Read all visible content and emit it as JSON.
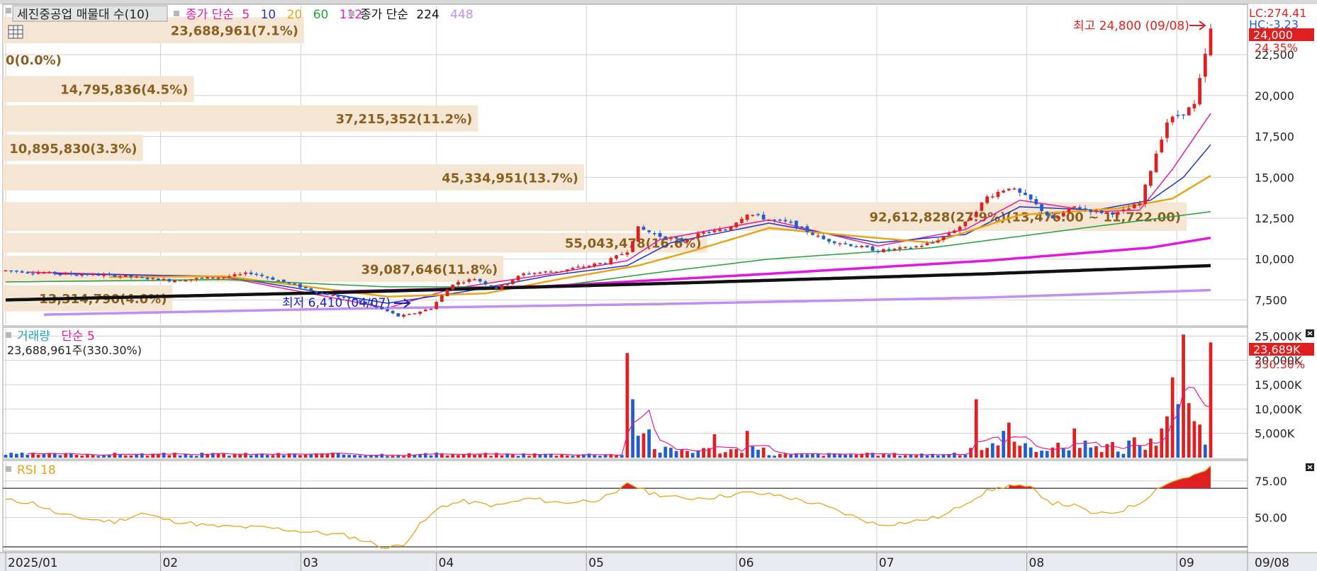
{
  "header": {
    "title": "세진중공업 매물대 수(10)",
    "ma_label": "종가 단순",
    "ma_periods": [
      "5",
      "10",
      "20",
      "60",
      "112"
    ],
    "ma_colors": [
      "#e8189a",
      "#2233cc",
      "#e8a317",
      "#22a038",
      "#e018e0"
    ],
    "ma2_label": "종가 단순",
    "ma2_periods": [
      "224",
      "448"
    ],
    "ma2_colors": [
      "#111111",
      "#c090f0"
    ]
  },
  "price_axis": {
    "ticks": [
      "22,500",
      "20,000",
      "17,500",
      "15,000",
      "12,500",
      "10,000",
      "7,500"
    ],
    "tick_values": [
      22500,
      20000,
      17500,
      15000,
      12500,
      10000,
      7500
    ],
    "lc": "LC:274.41",
    "hc": "HC:-3.23",
    "current": "24,000",
    "change": "24.35%"
  },
  "annotations": {
    "high": "최고 24,800 (09/08)",
    "low": "최저 6,410 (04/07)"
  },
  "volume_profile": [
    {
      "label": "23,688,961(7.1%)",
      "price_low": 23200,
      "price_high": 24800,
      "fraction": 0.071
    },
    {
      "label": "0(0.0%)",
      "price_low": 21400,
      "price_high": 23000,
      "fraction": 0.0
    },
    {
      "label": "14,795,836(4.5%)",
      "price_low": 19600,
      "price_high": 21200,
      "fraction": 0.045
    },
    {
      "label": "37,215,352(11.2%)",
      "price_low": 17800,
      "price_high": 19400,
      "fraction": 0.112
    },
    {
      "label": "10,895,830(3.3%)",
      "price_low": 16000,
      "price_high": 17600,
      "fraction": 0.033
    },
    {
      "label": "45,334,951(13.7%)",
      "price_low": 14200,
      "price_high": 15800,
      "fraction": 0.137
    },
    {
      "label": "92,612,828(27.9%)(13,476.00 ~ 11,722.00)",
      "price_low": 11722,
      "price_high": 13476,
      "fraction": 0.279
    },
    {
      "label": "55,043,478(16.6%)",
      "price_low": 10400,
      "price_high": 11600,
      "fraction": 0.166
    },
    {
      "label": "39,087,646(11.8%)",
      "price_low": 8600,
      "price_high": 10200,
      "fraction": 0.118
    },
    {
      "label": "13,314,790(4.0%)",
      "price_low": 6800,
      "price_high": 8400,
      "fraction": 0.04
    }
  ],
  "volume_panel": {
    "title": "거래량",
    "ma_label": "단순 5",
    "info": "23,688,961주(330.30%)",
    "ticks": [
      "25,000K",
      "20,000K",
      "15,000K",
      "10,000K",
      "5,000K"
    ],
    "tick_values": [
      25000,
      20000,
      15000,
      10000,
      5000
    ],
    "current": "23,689K",
    "change": "330.30%"
  },
  "rsi_panel": {
    "title": "RSI 18",
    "ticks": [
      "75.00",
      "50.00"
    ],
    "tick_values": [
      75,
      50
    ],
    "overbought": 70,
    "underline": 30
  },
  "x_axis": {
    "labels": [
      "2025/01",
      "02",
      "03",
      "04",
      "05",
      "06",
      "07",
      "08",
      "09"
    ],
    "label_dates": [
      "2025-01-02",
      "2025-02-03",
      "2025-03-04",
      "2025-04-01",
      "2025-05-02",
      "2025-06-02",
      "2025-07-01",
      "2025-08-01",
      "2025-09-01"
    ],
    "right_label": "09/08"
  },
  "chart_data": {
    "type": "candlestick",
    "start_date": "2025-01-02",
    "end_date": "2025-09-08",
    "price_ylim": [
      6000,
      25500
    ],
    "price_path": [
      [
        0,
        9300
      ],
      [
        10,
        9100
      ],
      [
        20,
        9000
      ],
      [
        30,
        8700
      ],
      [
        40,
        8900
      ],
      [
        45,
        9150
      ],
      [
        50,
        8700
      ],
      [
        58,
        7900
      ],
      [
        64,
        7500
      ],
      [
        70,
        6800
      ],
      [
        72,
        6500
      ],
      [
        74,
        6600
      ],
      [
        78,
        7000
      ],
      [
        82,
        8500
      ],
      [
        86,
        8800
      ],
      [
        90,
        8200
      ],
      [
        95,
        9100
      ],
      [
        102,
        9300
      ],
      [
        110,
        9800
      ],
      [
        114,
        10500
      ],
      [
        116,
        11900
      ],
      [
        120,
        11400
      ],
      [
        124,
        11100
      ],
      [
        128,
        11600
      ],
      [
        132,
        11800
      ],
      [
        136,
        12800
      ],
      [
        140,
        12400
      ],
      [
        144,
        12200
      ],
      [
        150,
        11200
      ],
      [
        156,
        10800
      ],
      [
        160,
        10500
      ],
      [
        166,
        10700
      ],
      [
        170,
        11000
      ],
      [
        176,
        12200
      ],
      [
        180,
        13800
      ],
      [
        184,
        14400
      ],
      [
        188,
        13600
      ],
      [
        192,
        12400
      ],
      [
        196,
        13200
      ],
      [
        200,
        12900
      ],
      [
        204,
        12800
      ],
      [
        208,
        13400
      ],
      [
        211,
        16500
      ],
      [
        213,
        18400
      ],
      [
        216,
        19000
      ],
      [
        218,
        19400
      ],
      [
        221,
        24000
      ]
    ],
    "ma_lines": [
      {
        "period": "5",
        "color": "#e8189a",
        "path": [
          [
            4,
            9200
          ],
          [
            40,
            8900
          ],
          [
            70,
            7000
          ],
          [
            82,
            8200
          ],
          [
            100,
            9100
          ],
          [
            114,
            9900
          ],
          [
            120,
            11200
          ],
          [
            140,
            12400
          ],
          [
            160,
            10800
          ],
          [
            176,
            11800
          ],
          [
            186,
            13600
          ],
          [
            200,
            12900
          ],
          [
            208,
            13000
          ],
          [
            214,
            15500
          ],
          [
            221,
            18900
          ]
        ]
      },
      {
        "period": "10",
        "color": "#2233cc",
        "path": [
          [
            9,
            9100
          ],
          [
            40,
            8950
          ],
          [
            70,
            7300
          ],
          [
            84,
            8000
          ],
          [
            100,
            9000
          ],
          [
            114,
            9600
          ],
          [
            122,
            11000
          ],
          [
            140,
            12200
          ],
          [
            160,
            11000
          ],
          [
            176,
            11500
          ],
          [
            186,
            13200
          ],
          [
            200,
            13000
          ],
          [
            210,
            13600
          ],
          [
            216,
            15000
          ],
          [
            221,
            17000
          ]
        ]
      },
      {
        "period": "20",
        "color": "#e8a317",
        "path": [
          [
            19,
            8900
          ],
          [
            40,
            8950
          ],
          [
            70,
            7700
          ],
          [
            88,
            7900
          ],
          [
            102,
            8800
          ],
          [
            116,
            9600
          ],
          [
            126,
            10500
          ],
          [
            140,
            11900
          ],
          [
            156,
            11400
          ],
          [
            170,
            11000
          ],
          [
            186,
            12700
          ],
          [
            204,
            13100
          ],
          [
            214,
            13700
          ],
          [
            221,
            15100
          ]
        ]
      },
      {
        "period": "60",
        "color": "#22a038",
        "path": [
          [
            0,
            8600
          ],
          [
            40,
            8750
          ],
          [
            70,
            8300
          ],
          [
            100,
            8300
          ],
          [
            120,
            9200
          ],
          [
            140,
            10000
          ],
          [
            170,
            10700
          ],
          [
            200,
            12000
          ],
          [
            221,
            12900
          ]
        ]
      },
      {
        "period": "112",
        "color": "#e018e0",
        "path": [
          [
            60,
            8000
          ],
          [
            100,
            8350
          ],
          [
            140,
            9100
          ],
          [
            180,
            9900
          ],
          [
            210,
            10700
          ],
          [
            221,
            11300
          ]
        ]
      },
      {
        "period": "224",
        "color": "#111111",
        "path": [
          [
            0,
            7500
          ],
          [
            60,
            7950
          ],
          [
            120,
            8500
          ],
          [
            180,
            9100
          ],
          [
            221,
            9600
          ]
        ]
      },
      {
        "period": "448",
        "color": "#c090f0",
        "path": [
          [
            7,
            6600
          ],
          [
            60,
            6950
          ],
          [
            120,
            7250
          ],
          [
            180,
            7650
          ],
          [
            221,
            8100
          ]
        ]
      }
    ],
    "volume_ylim": [
      0,
      26500
    ],
    "volume_spikes": [
      [
        114,
        21500,
        "up"
      ],
      [
        115,
        12000,
        "down"
      ],
      [
        116,
        4500,
        "down"
      ],
      [
        117,
        5000,
        "up"
      ],
      [
        118,
        5800,
        "down"
      ],
      [
        130,
        4800,
        "up"
      ],
      [
        136,
        5500,
        "up"
      ],
      [
        178,
        12000,
        "up"
      ],
      [
        183,
        5500,
        "down"
      ],
      [
        184,
        7200,
        "up"
      ],
      [
        196,
        6000,
        "up"
      ],
      [
        198,
        3500,
        "down"
      ],
      [
        212,
        6000,
        "up"
      ],
      [
        213,
        8500,
        "up"
      ],
      [
        214,
        16500,
        "up"
      ],
      [
        215,
        11000,
        "down"
      ],
      [
        216,
        25300,
        "up"
      ],
      [
        217,
        11200,
        "up"
      ],
      [
        218,
        7500,
        "up"
      ],
      [
        219,
        6800,
        "up"
      ],
      [
        221,
        23689,
        "up"
      ]
    ],
    "rsi_ylim": [
      28,
      88
    ],
    "rsi_path": [
      [
        0,
        62
      ],
      [
        5,
        60
      ],
      [
        10,
        52
      ],
      [
        15,
        49
      ],
      [
        20,
        47
      ],
      [
        25,
        53
      ],
      [
        30,
        48
      ],
      [
        38,
        44
      ],
      [
        48,
        43
      ],
      [
        56,
        40
      ],
      [
        62,
        38
      ],
      [
        66,
        34
      ],
      [
        70,
        29
      ],
      [
        73,
        32
      ],
      [
        76,
        45
      ],
      [
        80,
        58
      ],
      [
        84,
        61
      ],
      [
        90,
        58
      ],
      [
        96,
        63
      ],
      [
        102,
        60
      ],
      [
        108,
        62
      ],
      [
        112,
        66
      ],
      [
        114,
        74
      ],
      [
        118,
        67
      ],
      [
        124,
        63
      ],
      [
        130,
        64
      ],
      [
        136,
        67
      ],
      [
        142,
        65
      ],
      [
        150,
        58
      ],
      [
        156,
        50
      ],
      [
        160,
        45
      ],
      [
        166,
        47
      ],
      [
        172,
        51
      ],
      [
        176,
        60
      ],
      [
        180,
        68
      ],
      [
        184,
        72
      ],
      [
        188,
        70
      ],
      [
        192,
        60
      ],
      [
        196,
        58
      ],
      [
        200,
        52
      ],
      [
        204,
        54
      ],
      [
        208,
        60
      ],
      [
        212,
        72
      ],
      [
        216,
        77
      ],
      [
        219,
        80
      ],
      [
        221,
        84
      ]
    ]
  }
}
